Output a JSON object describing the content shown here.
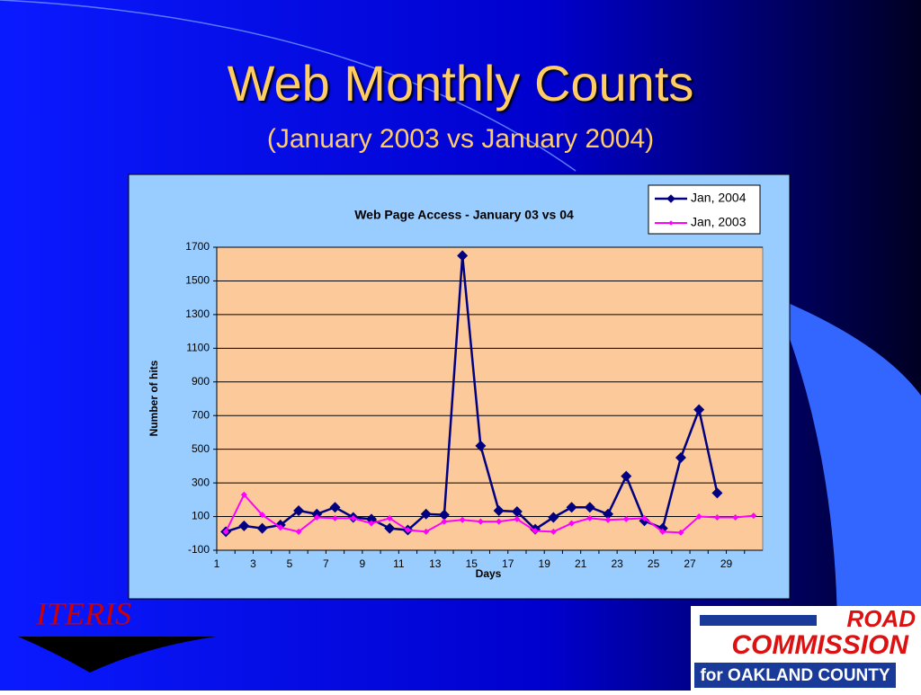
{
  "slide": {
    "title": "Web Monthly Counts",
    "subtitle": "(January 2003 vs January 2004)"
  },
  "logos": {
    "iteris": "ITERIS",
    "road_commission": [
      "ROAD",
      "COMMISSION",
      "for OAKLAND COUNTY"
    ]
  },
  "chart_data": {
    "type": "line",
    "title": "Web Page Access - January 03 vs 04",
    "x_label": "Days",
    "y_label": "Number of hits",
    "categories": [
      "1",
      null,
      "3",
      null,
      "5",
      null,
      "7",
      null,
      "9",
      null,
      "11",
      null,
      "13",
      null,
      "15",
      null,
      "17",
      null,
      "19",
      null,
      "21",
      null,
      "23",
      null,
      "25",
      null,
      "27",
      null,
      "29",
      null
    ],
    "series": [
      {
        "name": "Jan, 2004",
        "color": "#000080",
        "marker": "large",
        "values": [
          10,
          45,
          30,
          50,
          135,
          115,
          155,
          95,
          85,
          30,
          20,
          115,
          110,
          1650,
          520,
          135,
          130,
          25,
          95,
          155,
          155,
          115,
          340,
          75,
          30,
          450,
          735,
          240,
          null,
          null
        ]
      },
      {
        "name": "Jan, 2003",
        "color": "#ff00ff",
        "marker": "small",
        "values": [
          10,
          230,
          110,
          35,
          10,
          95,
          90,
          90,
          60,
          90,
          20,
          10,
          70,
          80,
          70,
          70,
          85,
          15,
          10,
          60,
          90,
          80,
          85,
          90,
          10,
          5,
          100,
          95,
          95,
          105
        ]
      }
    ],
    "ylim": [
      -100,
      1700
    ],
    "yticks": [
      -100,
      100,
      300,
      500,
      700,
      900,
      1100,
      1300,
      1500,
      1700
    ],
    "grid": true,
    "legend": "top-right"
  }
}
